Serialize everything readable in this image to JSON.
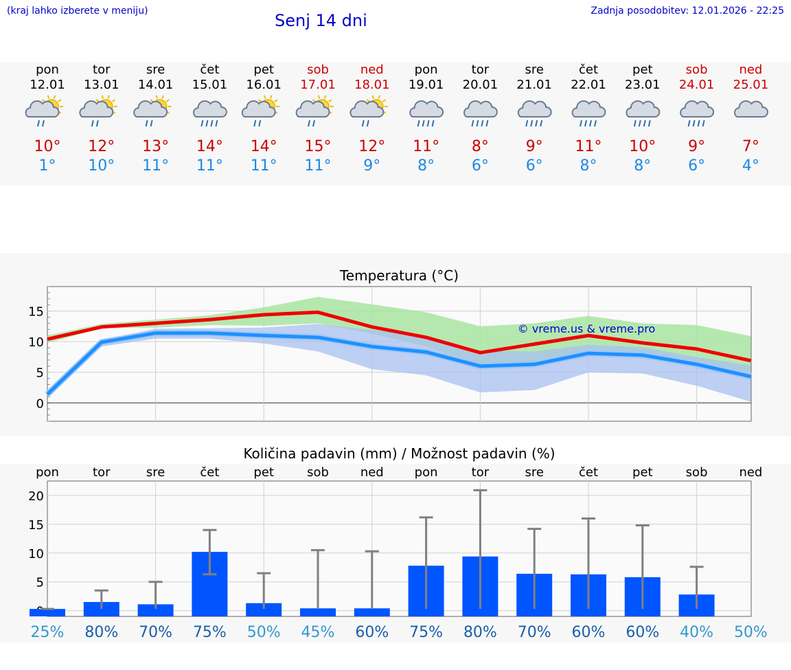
{
  "header": {
    "city_hint": "(kraj lahko izberete v meniju)",
    "title": "Senj 14 dni",
    "updated": "Zadnja posodobitev: 12.01.2026 - 22:25"
  },
  "days": [
    {
      "dow": "pon",
      "date": "12.01",
      "weekend": false,
      "icon": "partly-sunny-rain-icon",
      "max": "10°",
      "min": "1°"
    },
    {
      "dow": "tor",
      "date": "13.01",
      "weekend": false,
      "icon": "partly-sunny-rain-icon",
      "max": "12°",
      "min": "10°"
    },
    {
      "dow": "sre",
      "date": "14.01",
      "weekend": false,
      "icon": "partly-sunny-rain-icon",
      "max": "13°",
      "min": "11°"
    },
    {
      "dow": "čet",
      "date": "15.01",
      "weekend": false,
      "icon": "cloud-rain-icon",
      "max": "14°",
      "min": "11°"
    },
    {
      "dow": "pet",
      "date": "16.01",
      "weekend": false,
      "icon": "partly-sunny-rain-icon",
      "max": "14°",
      "min": "11°"
    },
    {
      "dow": "sob",
      "date": "17.01",
      "weekend": true,
      "icon": "partly-sunny-rain-icon",
      "max": "15°",
      "min": "11°"
    },
    {
      "dow": "ned",
      "date": "18.01",
      "weekend": true,
      "icon": "partly-sunny-rain-icon",
      "max": "12°",
      "min": "9°"
    },
    {
      "dow": "pon",
      "date": "19.01",
      "weekend": false,
      "icon": "cloud-rain-icon",
      "max": "11°",
      "min": "8°"
    },
    {
      "dow": "tor",
      "date": "20.01",
      "weekend": false,
      "icon": "cloud-rain-icon",
      "max": "8°",
      "min": "6°"
    },
    {
      "dow": "sre",
      "date": "21.01",
      "weekend": false,
      "icon": "cloud-rain-icon",
      "max": "9°",
      "min": "6°"
    },
    {
      "dow": "čet",
      "date": "22.01",
      "weekend": false,
      "icon": "cloud-rain-icon",
      "max": "11°",
      "min": "8°"
    },
    {
      "dow": "pet",
      "date": "23.01",
      "weekend": false,
      "icon": "cloud-rain-icon",
      "max": "10°",
      "min": "8°"
    },
    {
      "dow": "sob",
      "date": "24.01",
      "weekend": true,
      "icon": "cloud-rain-icon",
      "max": "9°",
      "min": "6°"
    },
    {
      "dow": "ned",
      "date": "25.01",
      "weekend": true,
      "icon": "cloud-icon",
      "max": "7°",
      "min": "4°"
    }
  ],
  "colors": {
    "link": "#0000cc",
    "weekend": "#cc0000",
    "max_temp": "#cc0000",
    "min_temp": "#1e88e5",
    "max_line": "#ee0000",
    "min_line": "#1e90ff",
    "max_band": "#a8e4a0",
    "min_band": "#a8c0f0",
    "bar": "#0055ff",
    "whisker": "#808080",
    "pct_high": "#1a5fa8",
    "pct_low": "#3399cc"
  },
  "chart_data": [
    {
      "type": "line",
      "title": "Temperatura (°C)",
      "watermark": "© vreme.us & vreme.pro",
      "categories": [
        "12.01",
        "13.01",
        "14.01",
        "15.01",
        "16.01",
        "17.01",
        "18.01",
        "19.01",
        "20.01",
        "21.01",
        "22.01",
        "23.01",
        "24.01",
        "25.01"
      ],
      "yticks": [
        0,
        5,
        10,
        15
      ],
      "ylim": [
        -3,
        19
      ],
      "series": [
        {
          "name": "max",
          "values": [
            10.4,
            12.4,
            13.0,
            13.6,
            14.4,
            14.8,
            12.4,
            10.7,
            8.2,
            9.6,
            11.0,
            9.8,
            8.8,
            6.9
          ]
        },
        {
          "name": "min",
          "values": [
            1.4,
            9.9,
            11.4,
            11.4,
            11.0,
            10.7,
            9.2,
            8.3,
            6.0,
            6.3,
            8.1,
            7.8,
            6.3,
            4.3
          ]
        }
      ],
      "max_band": [
        [
          9.8,
          11.0
        ],
        [
          12.2,
          12.9
        ],
        [
          12.3,
          13.6
        ],
        [
          12.7,
          14.3
        ],
        [
          12.6,
          15.6
        ],
        [
          13.0,
          17.3
        ],
        [
          11.3,
          16.1
        ],
        [
          9.2,
          14.8
        ],
        [
          6.1,
          12.5
        ],
        [
          6.8,
          13.0
        ],
        [
          8.6,
          14.2
        ],
        [
          7.7,
          13.0
        ],
        [
          6.3,
          12.7
        ],
        [
          4.9,
          10.9
        ]
      ],
      "min_band": [
        [
          1.0,
          1.8
        ],
        [
          9.2,
          10.3
        ],
        [
          10.5,
          12.1
        ],
        [
          10.5,
          12.2
        ],
        [
          9.7,
          12.3
        ],
        [
          8.4,
          12.9
        ],
        [
          5.5,
          11.9
        ],
        [
          4.5,
          11.0
        ],
        [
          1.7,
          8.5
        ],
        [
          2.1,
          8.4
        ],
        [
          5.0,
          9.5
        ],
        [
          4.8,
          9.1
        ],
        [
          2.8,
          7.5
        ],
        [
          0.2,
          6.1
        ]
      ]
    },
    {
      "type": "bar",
      "title": "Količina padavin (mm) / Možnost padavin (%)",
      "categories": [
        "pon",
        "tor",
        "sre",
        "čet",
        "pet",
        "sob",
        "ned",
        "pon",
        "tor",
        "sre",
        "čet",
        "pet",
        "sob",
        "ned"
      ],
      "yticks": [
        0,
        5,
        10,
        15,
        20
      ],
      "ylim": [
        -1,
        22.5
      ],
      "values": [
        0.3,
        1.5,
        1.1,
        10.2,
        1.3,
        0.4,
        0.4,
        7.8,
        9.4,
        6.4,
        6.3,
        5.8,
        2.8,
        0
      ],
      "error_low": [
        0.3,
        0.3,
        0.3,
        6.3,
        0.3,
        0.3,
        0.3,
        0.3,
        0.3,
        0.3,
        0.3,
        0.3,
        0.3,
        0
      ],
      "error_high": [
        0.3,
        3.5,
        5.0,
        14.0,
        6.5,
        10.5,
        10.3,
        16.2,
        20.9,
        14.2,
        16.0,
        14.8,
        7.6,
        0
      ],
      "probability": [
        "25%",
        "80%",
        "70%",
        "75%",
        "50%",
        "45%",
        "60%",
        "75%",
        "80%",
        "70%",
        "60%",
        "60%",
        "40%",
        "50%"
      ]
    }
  ]
}
